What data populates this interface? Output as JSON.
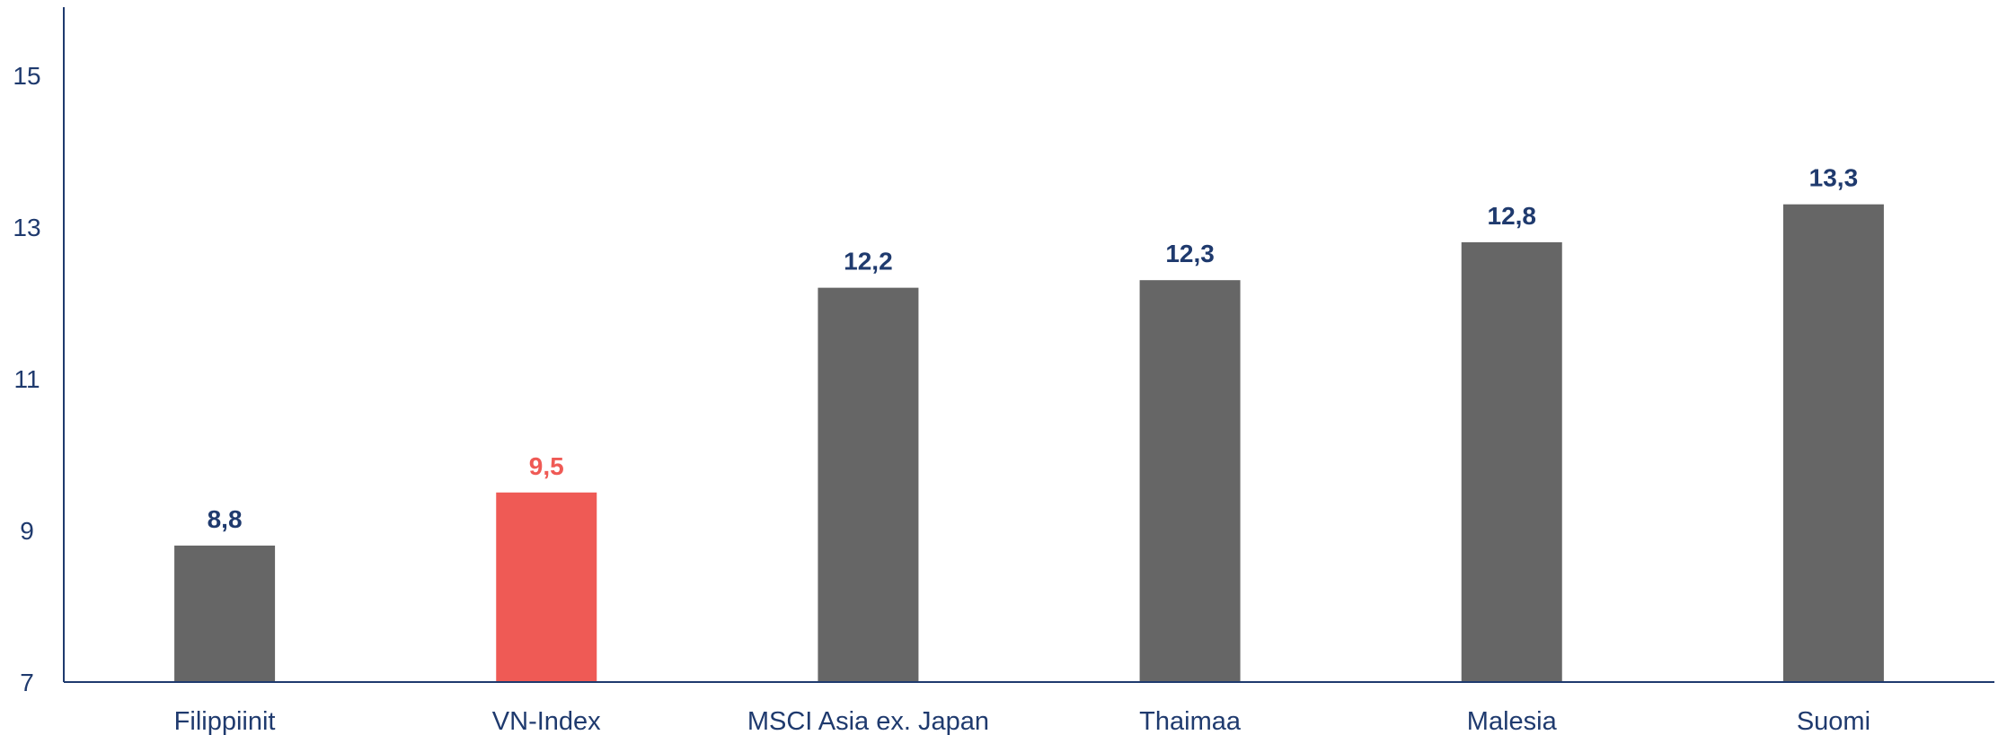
{
  "chart_data": {
    "type": "bar",
    "categories": [
      "Filippiinit",
      "VN-Index",
      "MSCI Asia ex. Japan",
      "Thaimaa",
      "Malesia",
      "Suomi"
    ],
    "values": [
      8.8,
      9.5,
      12.2,
      12.3,
      12.8,
      13.3
    ],
    "value_labels": [
      "8,8",
      "9,5",
      "12,2",
      "12,3",
      "12,8",
      "13,3"
    ],
    "ylim": [
      7,
      15.9
    ],
    "yticks": [
      7,
      9,
      11,
      13,
      15
    ],
    "ytick_labels": [
      "7",
      "9",
      "11",
      "13",
      "15"
    ],
    "highlight_index": 1,
    "grid": false,
    "legend": "none",
    "colors": {
      "bar": "#666666",
      "highlight_bar": "#ef5a55",
      "label": "#1f3a6e",
      "highlight_label": "#ef5a55",
      "axis": "#1f3a6e"
    }
  }
}
